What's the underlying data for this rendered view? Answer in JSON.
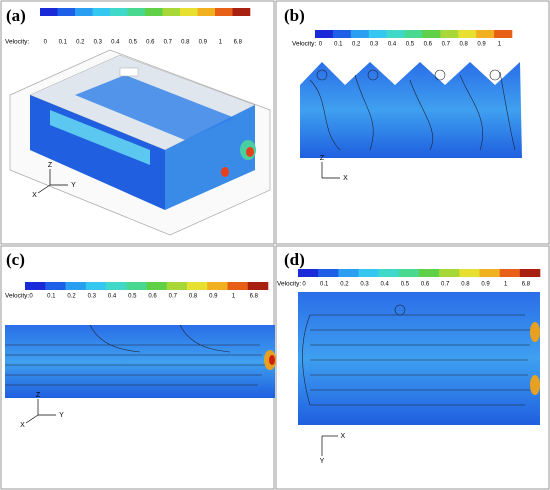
{
  "panels": [
    {
      "label": "(a)",
      "legend": {
        "title": "Velocity:",
        "ticks": [
          "0",
          "0.1",
          "0.2",
          "0.3",
          "0.4",
          "0.5",
          "0.6",
          "0.7",
          "0.8",
          "0.9",
          "1",
          "6.8"
        ]
      },
      "axes": [
        "Z",
        "X",
        "Y"
      ]
    },
    {
      "label": "(b)",
      "legend": {
        "title": "Velocity:",
        "ticks": [
          "0",
          "0.1",
          "0.2",
          "0.3",
          "0.4",
          "0.5",
          "0.6",
          "0.7",
          "0.8",
          "0.9",
          "1"
        ]
      },
      "axes": [
        "Z",
        "X"
      ]
    },
    {
      "label": "(c)",
      "legend": {
        "title": "Velocity:",
        "ticks": [
          "0",
          "0.1",
          "0.2",
          "0.3",
          "0.4",
          "0.5",
          "0.6",
          "0.7",
          "0.8",
          "0.9",
          "1",
          "6.8"
        ]
      },
      "axes": [
        "Z",
        "X",
        "Y"
      ]
    },
    {
      "label": "(d)",
      "legend": {
        "title": "Velocity:",
        "ticks": [
          "0",
          "0.1",
          "0.2",
          "0.3",
          "0.4",
          "0.5",
          "0.6",
          "0.7",
          "0.8",
          "0.9",
          "1",
          "6.8"
        ]
      },
      "axes": [
        "Y",
        "X"
      ]
    }
  ]
}
